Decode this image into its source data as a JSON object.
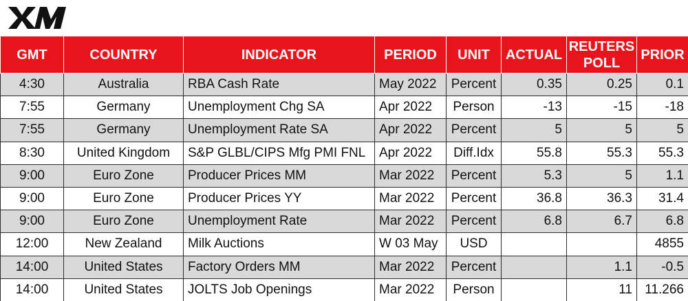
{
  "brand": {
    "logo_text": "XM",
    "accent_color": "#e8141c"
  },
  "table": {
    "headers": {
      "gmt": "GMT",
      "country": "COUNTRY",
      "indicator": "INDICATOR",
      "period": "PERIOD",
      "unit": "UNIT",
      "actual": "ACTUAL",
      "poll_line1": "REUTERS",
      "poll_line2": "POLL",
      "prior": "PRIOR"
    },
    "rows": [
      {
        "gmt": "4:30",
        "country": "Australia",
        "indicator": "RBA Cash Rate",
        "period": "May 2022",
        "unit": "Percent",
        "actual": "0.35",
        "poll": "0.25",
        "prior": "0.1"
      },
      {
        "gmt": "7:55",
        "country": "Germany",
        "indicator": "Unemployment Chg SA",
        "period": "Apr 2022",
        "unit": "Person",
        "actual": "-13",
        "poll": "-15",
        "prior": "-18"
      },
      {
        "gmt": "7:55",
        "country": "Germany",
        "indicator": "Unemployment Rate SA",
        "period": "Apr 2022",
        "unit": "Percent",
        "actual": "5",
        "poll": "5",
        "prior": "5"
      },
      {
        "gmt": "8:30",
        "country": "United Kingdom",
        "indicator": "S&P GLBL/CIPS Mfg PMI FNL",
        "period": "Apr 2022",
        "unit": "Diff.Idx",
        "actual": "55.8",
        "poll": "55.3",
        "prior": "55.3"
      },
      {
        "gmt": "9:00",
        "country": "Euro Zone",
        "indicator": "Producer Prices MM",
        "period": "Mar 2022",
        "unit": "Percent",
        "actual": "5.3",
        "poll": "5",
        "prior": "1.1"
      },
      {
        "gmt": "9:00",
        "country": "Euro Zone",
        "indicator": "Producer Prices YY",
        "period": "Mar 2022",
        "unit": "Percent",
        "actual": "36.8",
        "poll": "36.3",
        "prior": "31.4"
      },
      {
        "gmt": "9:00",
        "country": "Euro Zone",
        "indicator": "Unemployment Rate",
        "period": "Mar 2022",
        "unit": "Percent",
        "actual": "6.8",
        "poll": "6.7",
        "prior": "6.8"
      },
      {
        "gmt": "12:00",
        "country": "New Zealand",
        "indicator": "Milk Auctions",
        "period": "W 03 May",
        "unit": "USD",
        "actual": "",
        "poll": "",
        "prior": "4855"
      },
      {
        "gmt": "14:00",
        "country": "United States",
        "indicator": "Factory Orders MM",
        "period": "Mar 2022",
        "unit": "Percent",
        "actual": "",
        "poll": "1.1",
        "prior": "-0.5"
      },
      {
        "gmt": "14:00",
        "country": "United States",
        "indicator": "JOLTS Job Openings",
        "period": "Mar 2022",
        "unit": "Person",
        "actual": "",
        "poll": "11",
        "prior": "11.266"
      }
    ]
  }
}
